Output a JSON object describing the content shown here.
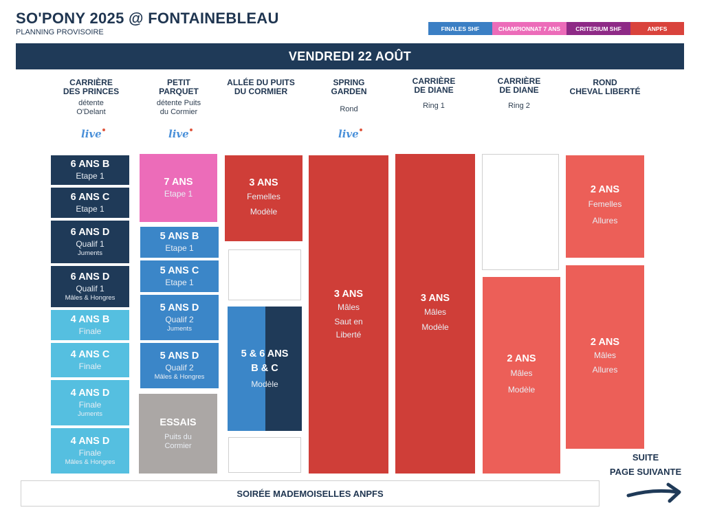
{
  "header": {
    "title": "SO'PONY 2025 @ FONTAINEBLEAU",
    "subtitle": "PLANNING PROVISOIRE"
  },
  "legend": [
    {
      "label": "FINALES SHF",
      "color": "#3b7fc4"
    },
    {
      "label": "CHAMPIONNAT 7 ANS",
      "color": "#ec6cb9"
    },
    {
      "label": "CRITERIUM SHF",
      "color": "#8e2a86"
    },
    {
      "label": "ANPFS",
      "color": "#d9433c"
    }
  ],
  "day_banner": "VENDREDI 22 AOÛT",
  "live_label": "live",
  "venues": [
    {
      "name_line1": "CARRIÈRE",
      "name_line2": "DES PRINCES",
      "sub_line1": "détente",
      "sub_line2": "O'Delant",
      "live": true
    },
    {
      "name_line1": "PETIT",
      "name_line2": "PARQUET",
      "sub_line1": "détente Puits",
      "sub_line2": "du Cormier",
      "live": true
    },
    {
      "name_line1": "ALLÉE DU PUITS",
      "name_line2": "DU CORMIER",
      "sub_line1": "",
      "sub_line2": "",
      "live": false
    },
    {
      "name_line1": "SPRING",
      "name_line2": "GARDEN",
      "sub_line1": "Rond",
      "sub_line2": "",
      "live": true
    },
    {
      "name_line1": "CARRIÈRE",
      "name_line2": "DE DIANE",
      "sub_line1": "Ring  1",
      "sub_line2": "",
      "live": false
    },
    {
      "name_line1": "CARRIÈRE",
      "name_line2": "DE DIANE",
      "sub_line1": "Ring  2",
      "sub_line2": "",
      "live": false
    },
    {
      "name_line1": "ROND",
      "name_line2": "CHEVAL LIBERTÉ",
      "sub_line1": "",
      "sub_line2": "",
      "live": false
    }
  ],
  "col1": [
    {
      "t1": "6 ANS B",
      "t2": "Etape 1",
      "t3": ""
    },
    {
      "t1": "6 ANS C",
      "t2": "Etape 1",
      "t3": ""
    },
    {
      "t1": "6 ANS D",
      "t2": "Qualif 1",
      "t3": "Juments"
    },
    {
      "t1": "6 ANS D",
      "t2": "Qualif 1",
      "t3": "Mâles & Hongres"
    },
    {
      "t1": "4 ANS B",
      "t2": "Finale",
      "t3": ""
    },
    {
      "t1": "4 ANS C",
      "t2": "Finale",
      "t3": ""
    },
    {
      "t1": "4 ANS D",
      "t2": "Finale",
      "t3": "Juments"
    },
    {
      "t1": "4 ANS D",
      "t2": "Finale",
      "t3": "Mâles & Hongres"
    }
  ],
  "col2": [
    {
      "t1": "7 ANS",
      "t2": "Etape 1",
      "t3": ""
    },
    {
      "t1": "5 ANS  B",
      "t2": "Etape 1",
      "t3": ""
    },
    {
      "t1": "5 ANS  C",
      "t2": "Etape 1",
      "t3": ""
    },
    {
      "t1": "5 ANS D",
      "t2": "Qualif 2",
      "t3": "Juments"
    },
    {
      "t1": "5 ANS D",
      "t2": "Qualif 2",
      "t3": "Mâles & Hongres"
    },
    {
      "t1": "ESSAIS",
      "t2": "Puits du",
      "t3": "Cormier"
    }
  ],
  "col3": [
    {
      "t1": "3 ANS",
      "t2": "Femelles",
      "t3": "Modèle"
    },
    {
      "t1a": "5 & 6 ANS",
      "t1b": "B & C",
      "t2": "Modèle"
    }
  ],
  "col4": {
    "t1": "3 ANS",
    "t2": "Mâles",
    "t3": "Saut en",
    "t4": "Liberté"
  },
  "col5": {
    "t1": "3 ANS",
    "t2": "Mâles",
    "t3": "Modèle"
  },
  "col6": {
    "t1": "2 ANS",
    "t2": "Mâles",
    "t3": "Modèle"
  },
  "col7": [
    {
      "t1": "2 ANS",
      "t2": "Femelles",
      "t3": "Allures"
    },
    {
      "t1": "2 ANS",
      "t2": "Mâles",
      "t3": "Allures"
    }
  ],
  "footer": {
    "suite_line1": "SUITE",
    "suite_line2": "PAGE SUIVANTE",
    "soiree": "SOIRÉE MADEMOISELLES ANPFS"
  },
  "colors": {
    "navy": "#1f3a58",
    "sky": "#55bfe0",
    "blue": "#3b86c8",
    "pink": "#ec6cb9",
    "grey": "#aba7a5",
    "red": "#cf3e38",
    "salmon": "#ec5f58"
  }
}
